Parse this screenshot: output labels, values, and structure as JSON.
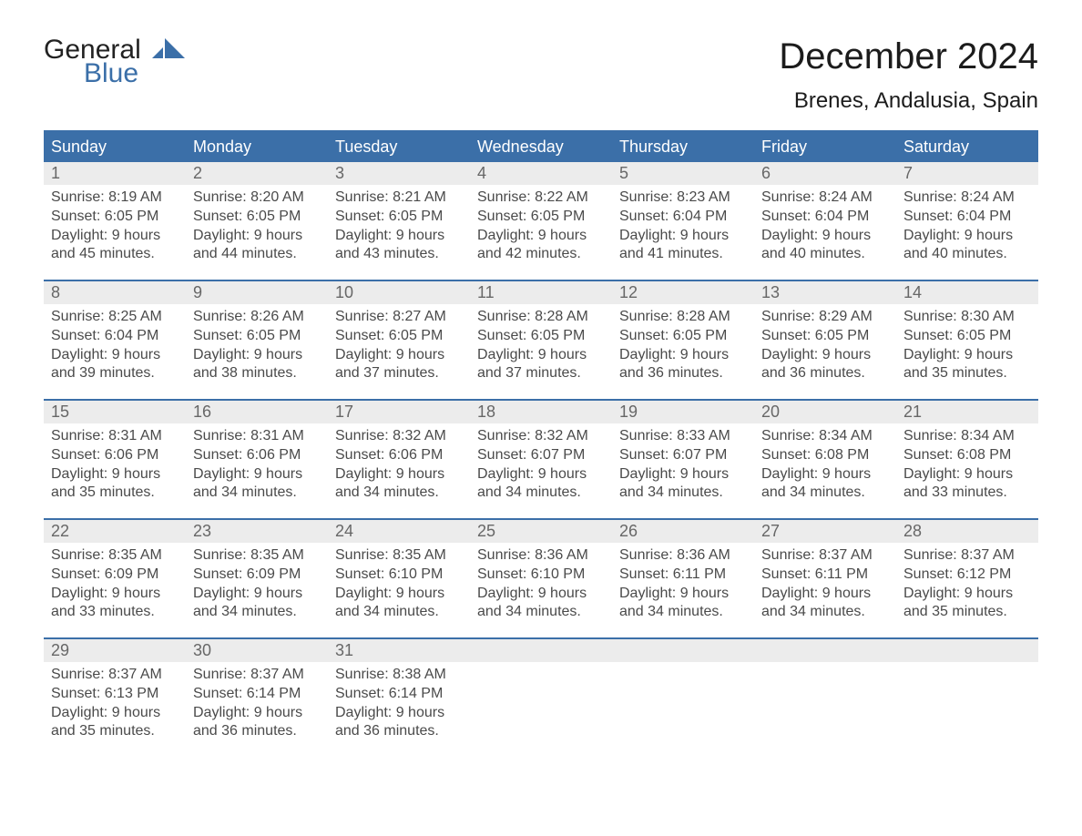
{
  "logo": {
    "word1": "General",
    "word2": "Blue"
  },
  "title": "December 2024",
  "location": "Brenes, Andalusia, Spain",
  "colors": {
    "brand_blue": "#3b6fa8",
    "header_blue": "#3b6fa8",
    "daybar_bg": "#ececec",
    "daybar_text": "#676767",
    "body_text": "#4a4a4a",
    "rule_blue": "#3b6fa8",
    "background": "#ffffff"
  },
  "typography": {
    "title_fontsize": 40,
    "location_fontsize": 24,
    "dow_fontsize": 18,
    "daynum_fontsize": 18,
    "body_fontsize": 16,
    "font_family": "Arial"
  },
  "calendar": {
    "type": "calendar-grid",
    "columns": 7,
    "day_headers": [
      "Sunday",
      "Monday",
      "Tuesday",
      "Wednesday",
      "Thursday",
      "Friday",
      "Saturday"
    ],
    "weeks": [
      {
        "days": [
          {
            "n": "1",
            "sunrise": "Sunrise: 8:19 AM",
            "sunset": "Sunset: 6:05 PM",
            "d1": "Daylight: 9 hours",
            "d2": "and 45 minutes."
          },
          {
            "n": "2",
            "sunrise": "Sunrise: 8:20 AM",
            "sunset": "Sunset: 6:05 PM",
            "d1": "Daylight: 9 hours",
            "d2": "and 44 minutes."
          },
          {
            "n": "3",
            "sunrise": "Sunrise: 8:21 AM",
            "sunset": "Sunset: 6:05 PM",
            "d1": "Daylight: 9 hours",
            "d2": "and 43 minutes."
          },
          {
            "n": "4",
            "sunrise": "Sunrise: 8:22 AM",
            "sunset": "Sunset: 6:05 PM",
            "d1": "Daylight: 9 hours",
            "d2": "and 42 minutes."
          },
          {
            "n": "5",
            "sunrise": "Sunrise: 8:23 AM",
            "sunset": "Sunset: 6:04 PM",
            "d1": "Daylight: 9 hours",
            "d2": "and 41 minutes."
          },
          {
            "n": "6",
            "sunrise": "Sunrise: 8:24 AM",
            "sunset": "Sunset: 6:04 PM",
            "d1": "Daylight: 9 hours",
            "d2": "and 40 minutes."
          },
          {
            "n": "7",
            "sunrise": "Sunrise: 8:24 AM",
            "sunset": "Sunset: 6:04 PM",
            "d1": "Daylight: 9 hours",
            "d2": "and 40 minutes."
          }
        ]
      },
      {
        "days": [
          {
            "n": "8",
            "sunrise": "Sunrise: 8:25 AM",
            "sunset": "Sunset: 6:04 PM",
            "d1": "Daylight: 9 hours",
            "d2": "and 39 minutes."
          },
          {
            "n": "9",
            "sunrise": "Sunrise: 8:26 AM",
            "sunset": "Sunset: 6:05 PM",
            "d1": "Daylight: 9 hours",
            "d2": "and 38 minutes."
          },
          {
            "n": "10",
            "sunrise": "Sunrise: 8:27 AM",
            "sunset": "Sunset: 6:05 PM",
            "d1": "Daylight: 9 hours",
            "d2": "and 37 minutes."
          },
          {
            "n": "11",
            "sunrise": "Sunrise: 8:28 AM",
            "sunset": "Sunset: 6:05 PM",
            "d1": "Daylight: 9 hours",
            "d2": "and 37 minutes."
          },
          {
            "n": "12",
            "sunrise": "Sunrise: 8:28 AM",
            "sunset": "Sunset: 6:05 PM",
            "d1": "Daylight: 9 hours",
            "d2": "and 36 minutes."
          },
          {
            "n": "13",
            "sunrise": "Sunrise: 8:29 AM",
            "sunset": "Sunset: 6:05 PM",
            "d1": "Daylight: 9 hours",
            "d2": "and 36 minutes."
          },
          {
            "n": "14",
            "sunrise": "Sunrise: 8:30 AM",
            "sunset": "Sunset: 6:05 PM",
            "d1": "Daylight: 9 hours",
            "d2": "and 35 minutes."
          }
        ]
      },
      {
        "days": [
          {
            "n": "15",
            "sunrise": "Sunrise: 8:31 AM",
            "sunset": "Sunset: 6:06 PM",
            "d1": "Daylight: 9 hours",
            "d2": "and 35 minutes."
          },
          {
            "n": "16",
            "sunrise": "Sunrise: 8:31 AM",
            "sunset": "Sunset: 6:06 PM",
            "d1": "Daylight: 9 hours",
            "d2": "and 34 minutes."
          },
          {
            "n": "17",
            "sunrise": "Sunrise: 8:32 AM",
            "sunset": "Sunset: 6:06 PM",
            "d1": "Daylight: 9 hours",
            "d2": "and 34 minutes."
          },
          {
            "n": "18",
            "sunrise": "Sunrise: 8:32 AM",
            "sunset": "Sunset: 6:07 PM",
            "d1": "Daylight: 9 hours",
            "d2": "and 34 minutes."
          },
          {
            "n": "19",
            "sunrise": "Sunrise: 8:33 AM",
            "sunset": "Sunset: 6:07 PM",
            "d1": "Daylight: 9 hours",
            "d2": "and 34 minutes."
          },
          {
            "n": "20",
            "sunrise": "Sunrise: 8:34 AM",
            "sunset": "Sunset: 6:08 PM",
            "d1": "Daylight: 9 hours",
            "d2": "and 34 minutes."
          },
          {
            "n": "21",
            "sunrise": "Sunrise: 8:34 AM",
            "sunset": "Sunset: 6:08 PM",
            "d1": "Daylight: 9 hours",
            "d2": "and 33 minutes."
          }
        ]
      },
      {
        "days": [
          {
            "n": "22",
            "sunrise": "Sunrise: 8:35 AM",
            "sunset": "Sunset: 6:09 PM",
            "d1": "Daylight: 9 hours",
            "d2": "and 33 minutes."
          },
          {
            "n": "23",
            "sunrise": "Sunrise: 8:35 AM",
            "sunset": "Sunset: 6:09 PM",
            "d1": "Daylight: 9 hours",
            "d2": "and 34 minutes."
          },
          {
            "n": "24",
            "sunrise": "Sunrise: 8:35 AM",
            "sunset": "Sunset: 6:10 PM",
            "d1": "Daylight: 9 hours",
            "d2": "and 34 minutes."
          },
          {
            "n": "25",
            "sunrise": "Sunrise: 8:36 AM",
            "sunset": "Sunset: 6:10 PM",
            "d1": "Daylight: 9 hours",
            "d2": "and 34 minutes."
          },
          {
            "n": "26",
            "sunrise": "Sunrise: 8:36 AM",
            "sunset": "Sunset: 6:11 PM",
            "d1": "Daylight: 9 hours",
            "d2": "and 34 minutes."
          },
          {
            "n": "27",
            "sunrise": "Sunrise: 8:37 AM",
            "sunset": "Sunset: 6:11 PM",
            "d1": "Daylight: 9 hours",
            "d2": "and 34 minutes."
          },
          {
            "n": "28",
            "sunrise": "Sunrise: 8:37 AM",
            "sunset": "Sunset: 6:12 PM",
            "d1": "Daylight: 9 hours",
            "d2": "and 35 minutes."
          }
        ]
      },
      {
        "days": [
          {
            "n": "29",
            "sunrise": "Sunrise: 8:37 AM",
            "sunset": "Sunset: 6:13 PM",
            "d1": "Daylight: 9 hours",
            "d2": "and 35 minutes."
          },
          {
            "n": "30",
            "sunrise": "Sunrise: 8:37 AM",
            "sunset": "Sunset: 6:14 PM",
            "d1": "Daylight: 9 hours",
            "d2": "and 36 minutes."
          },
          {
            "n": "31",
            "sunrise": "Sunrise: 8:38 AM",
            "sunset": "Sunset: 6:14 PM",
            "d1": "Daylight: 9 hours",
            "d2": "and 36 minutes."
          },
          {
            "n": "",
            "sunrise": "",
            "sunset": "",
            "d1": "",
            "d2": ""
          },
          {
            "n": "",
            "sunrise": "",
            "sunset": "",
            "d1": "",
            "d2": ""
          },
          {
            "n": "",
            "sunrise": "",
            "sunset": "",
            "d1": "",
            "d2": ""
          },
          {
            "n": "",
            "sunrise": "",
            "sunset": "",
            "d1": "",
            "d2": ""
          }
        ]
      }
    ]
  }
}
